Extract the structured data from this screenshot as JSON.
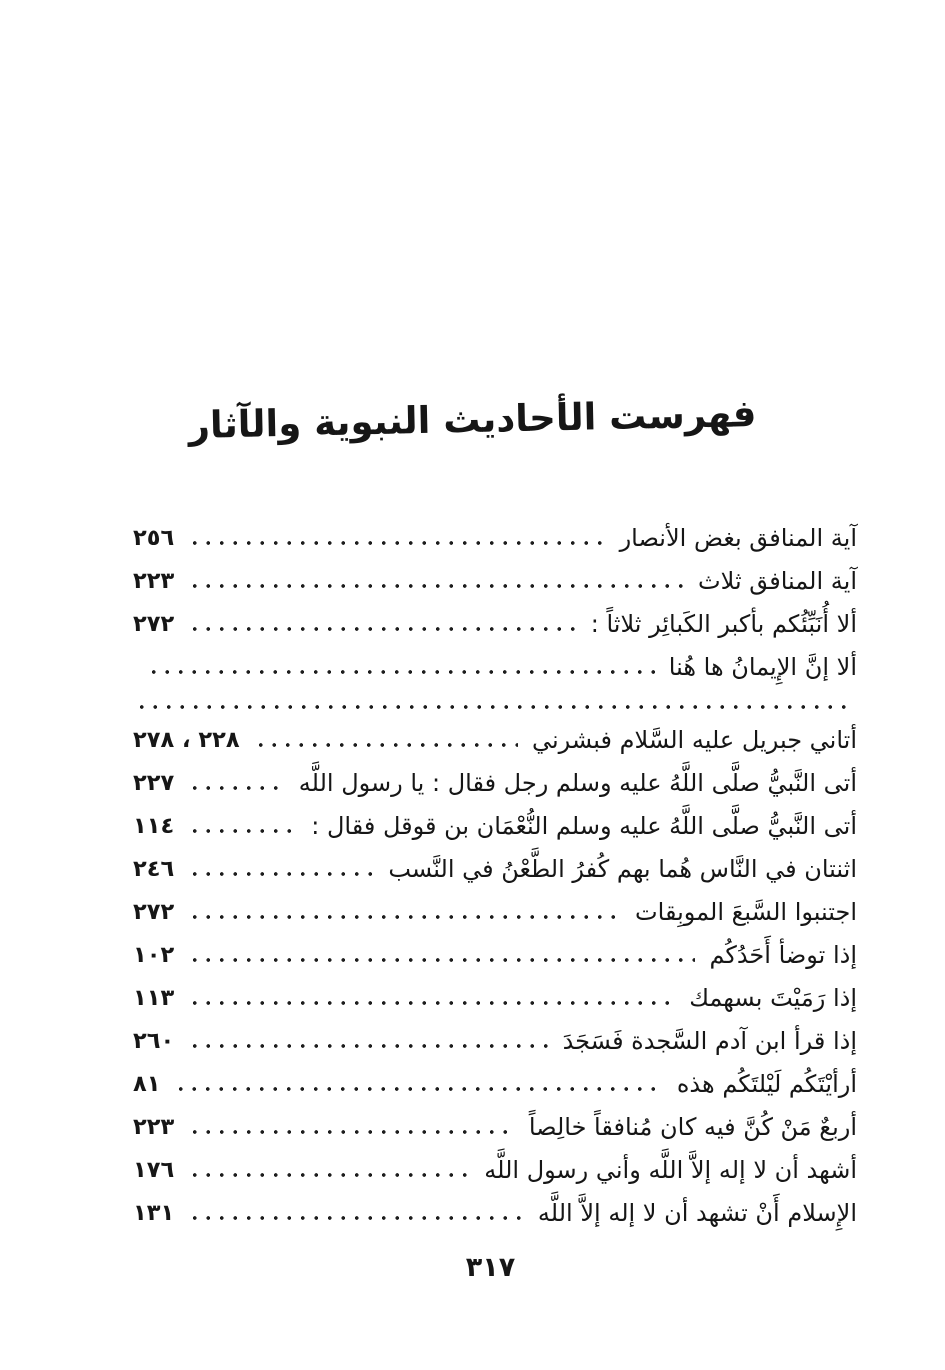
{
  "page": {
    "title": "فهرست الأحاديث النبوية والآثار",
    "footer_page_number": "٣١٧"
  },
  "index_entries": [
    {
      "text": "آية المنافق بغض الأنصار",
      "page": "٢٥٦"
    },
    {
      "text": "آية المنافق ثلاث",
      "page": "٢٢٣"
    },
    {
      "text": "ألا أُنَبِّئُكم بأكبر الكَبائِر ثلاثاً :",
      "page": "٢٧٢"
    },
    {
      "text": "ألا إنَّ الإِيمانُ ها هُنا",
      "page": "",
      "wrap_dots": true
    },
    {
      "text": "أتاني جبريل عليه السَّلام فبشرني",
      "page": "٢٢٨ ، ٢٧٨"
    },
    {
      "text": "أتى النَّبيُّ صلَّى اللَّهُ عليه وسلم رجل فقال : يا رسول اللَّه",
      "page": "٢٢٧"
    },
    {
      "text": "أتى النَّبيُّ صلَّى اللَّهُ عليه وسلم النُّعْمَان بن قوقل فقال :",
      "page": "١١٤"
    },
    {
      "text": "اثنتان في النَّاس هُما بهم كُفرُ الطَّعْنُ في النَّسب",
      "page": "٢٤٦"
    },
    {
      "text": "اجتنبوا السَّبعَ الموبِقات",
      "page": "٢٧٢"
    },
    {
      "text": "إذا توضأ أَحَدُكُم",
      "page": "١٠٢"
    },
    {
      "text": "إذا رَمَيْتَ بسهمك",
      "page": "١١٣"
    },
    {
      "text": "إذا قرأ ابن آدم السَّجدة فَسَجَدَ",
      "page": "٢٦٠"
    },
    {
      "text": "أرأيْتَكُم لَيْلتَكُم هذه",
      "page": "٨١"
    },
    {
      "text": "أربعٌ مَنْ كُنَّ فيه كان مُنافقاً خالِصاً",
      "page": "٢٢٣"
    },
    {
      "text": "أشهد أن لا إله إلاَّ اللَّه وأني رسول اللَّه",
      "page": "١٧٦"
    },
    {
      "text": "الإِسلام أَنْ تشهد أن لا إله إلاَّ اللَّه",
      "page": "١٣١"
    }
  ]
}
